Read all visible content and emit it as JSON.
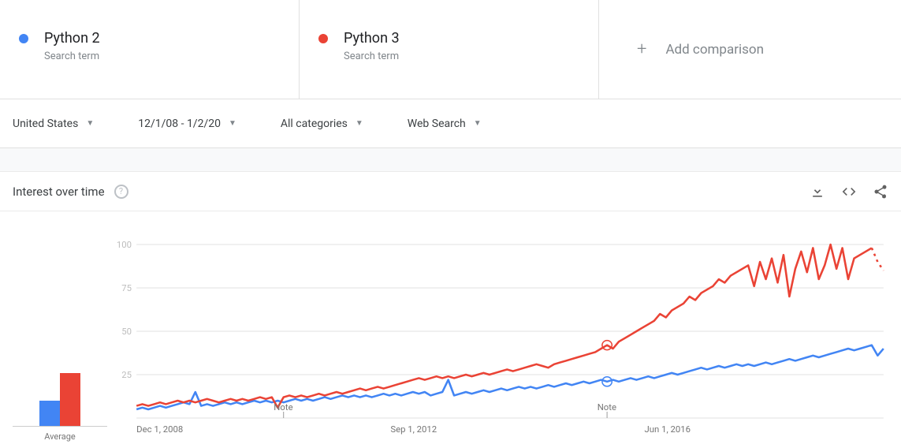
{
  "colors": {
    "term1": "#4285f4",
    "term2": "#ea4335",
    "grid": "#e0e0e0",
    "axis_text": "#bdbdbd",
    "sublabel": "#757575",
    "add_text": "#80868b"
  },
  "cmp": {
    "terms": [
      {
        "label": "Python 2",
        "sub": "Search term",
        "color": "#4285f4"
      },
      {
        "label": "Python 3",
        "sub": "Search term",
        "color": "#ea4335"
      }
    ],
    "add_label": "Add comparison"
  },
  "filters": {
    "geo": "United States",
    "time": "12/1/08 - 1/2/20",
    "category": "All categories",
    "search_type": "Web Search"
  },
  "section": {
    "title": "Interest over time"
  },
  "chart": {
    "type": "line",
    "ylim": [
      0,
      100
    ],
    "yticks": [
      25,
      50,
      75,
      100
    ],
    "x_start_label": "Dec 1, 2008",
    "x_mid_label": "Sep 1, 2012",
    "x_right_label": "Jun 1, 2016",
    "avg": {
      "label": "Average",
      "term1": 18,
      "term2": 37
    },
    "annotations": [
      {
        "text": "Note",
        "x_index": 25,
        "on": "axis"
      },
      {
        "text": "Note",
        "x_index": 80,
        "on": "axis",
        "ring_series": [
          "term1",
          "term2"
        ]
      }
    ],
    "series": {
      "term1": [
        5,
        6,
        5,
        6,
        7,
        6,
        7,
        8,
        9,
        8,
        15,
        7,
        8,
        7,
        8,
        9,
        8,
        9,
        8,
        9,
        10,
        9,
        10,
        9,
        10,
        9,
        10,
        11,
        10,
        11,
        10,
        11,
        12,
        11,
        12,
        13,
        12,
        13,
        12,
        13,
        12,
        13,
        14,
        13,
        14,
        13,
        14,
        15,
        14,
        15,
        13,
        14,
        15,
        22,
        13,
        14,
        15,
        14,
        15,
        16,
        15,
        16,
        17,
        16,
        17,
        18,
        17,
        18,
        17,
        18,
        19,
        18,
        19,
        20,
        19,
        20,
        21,
        20,
        21,
        22,
        21,
        22,
        21,
        22,
        23,
        22,
        23,
        24,
        23,
        24,
        25,
        26,
        25,
        26,
        27,
        28,
        29,
        28,
        29,
        30,
        29,
        30,
        31,
        30,
        31,
        30,
        31,
        32,
        31,
        32,
        33,
        34,
        33,
        34,
        35,
        36,
        35,
        36,
        37,
        38,
        39,
        40,
        39,
        40,
        41,
        42,
        36,
        40
      ],
      "term2": [
        7,
        8,
        7,
        8,
        9,
        8,
        9,
        10,
        9,
        10,
        9,
        10,
        11,
        10,
        9,
        10,
        11,
        10,
        11,
        10,
        11,
        12,
        11,
        12,
        6,
        12,
        13,
        12,
        13,
        12,
        13,
        14,
        13,
        14,
        15,
        14,
        15,
        16,
        17,
        16,
        17,
        18,
        17,
        18,
        19,
        20,
        21,
        22,
        23,
        22,
        23,
        24,
        23,
        24,
        23,
        24,
        25,
        24,
        25,
        26,
        25,
        26,
        27,
        28,
        27,
        28,
        29,
        30,
        31,
        30,
        29,
        31,
        32,
        33,
        34,
        35,
        36,
        37,
        38,
        40,
        42,
        40,
        44,
        46,
        48,
        50,
        52,
        54,
        56,
        60,
        58,
        62,
        64,
        66,
        70,
        68,
        72,
        74,
        76,
        80,
        78,
        82,
        84,
        86,
        88,
        76,
        90,
        80,
        92,
        78,
        94,
        70,
        86,
        96,
        84,
        98,
        80,
        88,
        100,
        86,
        98,
        80,
        92,
        94,
        96,
        98,
        90,
        85
      ],
      "term2_last_is_partial": true
    }
  }
}
